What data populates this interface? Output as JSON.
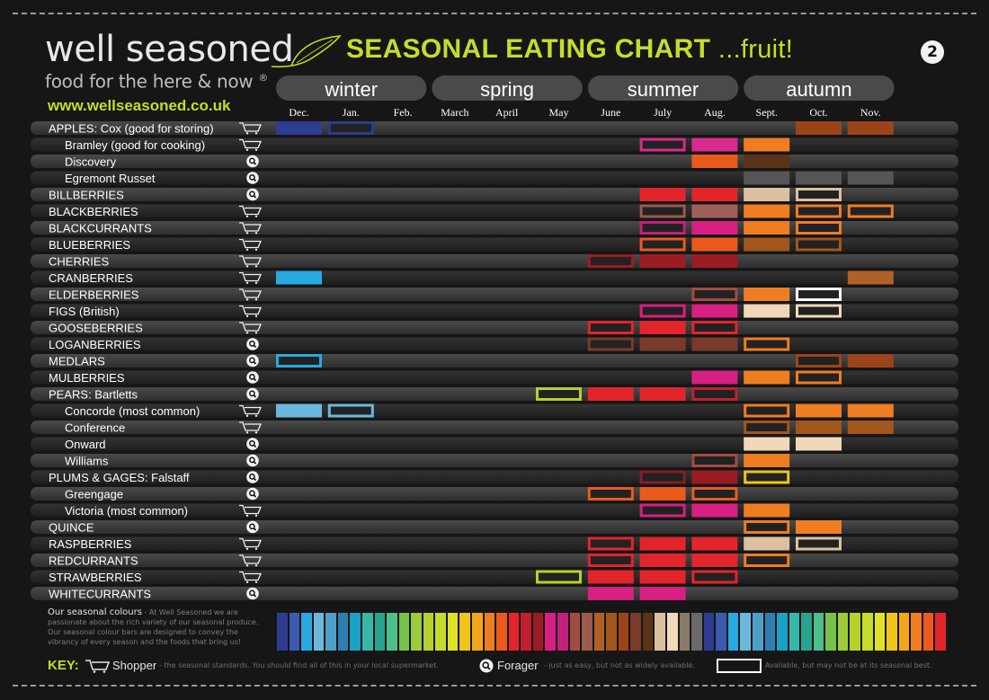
{
  "brand": {
    "name": "well seasoned",
    "tagline": "food for the here & now",
    "mark": "®",
    "url": "www.wellseasoned.co.uk"
  },
  "title": "SEASONAL EATING CHART",
  "title_suffix": "...fruit!",
  "badge": "2",
  "icons": {
    "shopper": "shopping-cart-icon",
    "forager": "magnifier-icon"
  },
  "chart_data": {
    "type": "table",
    "title": "SEASONAL EATING CHART ...fruit!",
    "seasons": [
      "winter",
      "spring",
      "summer",
      "autumn"
    ],
    "months": [
      "Dec.",
      "Jan.",
      "Feb.",
      "March",
      "April",
      "May",
      "June",
      "July",
      "Aug.",
      "Sept.",
      "Oct.",
      "Nov."
    ],
    "legend_styles": {
      "f": "filled block = in season",
      "o": "outlined block = available, but may not be at its seasonal best"
    },
    "rows": [
      {
        "name": "APPLES: Cox",
        "note": "(good for storing)",
        "sub": false,
        "src": "shopper",
        "cells": [
          [
            0,
            "#2e3c91",
            "f"
          ],
          [
            1,
            "#2e3c91",
            "o"
          ],
          [
            10,
            "#9c4419",
            "f"
          ],
          [
            11,
            "#9c4419",
            "f"
          ]
        ]
      },
      {
        "name": "Bramley",
        "note": "(good for cooking)",
        "sub": true,
        "src": "shopper",
        "cells": [
          [
            7,
            "#d92a8e",
            "o"
          ],
          [
            8,
            "#d92a8e",
            "f"
          ],
          [
            9,
            "#ef7d22",
            "f"
          ]
        ]
      },
      {
        "name": "Discovery",
        "sub": true,
        "src": "forager",
        "cells": [
          [
            8,
            "#ea5a1d",
            "f"
          ],
          [
            9,
            "#5a3418",
            "f"
          ]
        ]
      },
      {
        "name": "Egremont Russet",
        "sub": true,
        "src": "forager",
        "cells": [
          [
            9,
            "#555555",
            "f"
          ],
          [
            10,
            "#555555",
            "f"
          ],
          [
            11,
            "#555555",
            "f"
          ]
        ]
      },
      {
        "name": "BILLBERRIES",
        "sub": false,
        "src": "forager",
        "cells": [
          [
            7,
            "#e2252b",
            "f"
          ],
          [
            8,
            "#e2252b",
            "f"
          ],
          [
            9,
            "#dcc0a0",
            "f"
          ],
          [
            10,
            "#dcc0a0",
            "o"
          ]
        ]
      },
      {
        "name": "BLACKBERRIES",
        "sub": false,
        "src": "shopper",
        "cells": [
          [
            7,
            "#9a5a4e",
            "o"
          ],
          [
            8,
            "#a0605a",
            "f"
          ],
          [
            9,
            "#ef7d22",
            "f"
          ],
          [
            10,
            "#ef7d22",
            "o"
          ],
          [
            11,
            "#ef7d22",
            "o"
          ]
        ]
      },
      {
        "name": "BLACKCURRANTS",
        "sub": false,
        "src": "shopper",
        "cells": [
          [
            7,
            "#c2207a",
            "o"
          ],
          [
            8,
            "#d81f82",
            "f"
          ],
          [
            9,
            "#ef7d22",
            "f"
          ],
          [
            10,
            "#ef7d22",
            "o"
          ]
        ]
      },
      {
        "name": "BLUEBERRIES",
        "sub": false,
        "src": "shopper",
        "cells": [
          [
            7,
            "#ea5a1d",
            "o"
          ],
          [
            8,
            "#ea5a1d",
            "f"
          ],
          [
            9,
            "#a3561b",
            "f"
          ],
          [
            10,
            "#a3561b",
            "o"
          ]
        ]
      },
      {
        "name": "CHERRIES",
        "sub": false,
        "src": "shopper",
        "cells": [
          [
            6,
            "#9c1c24",
            "o"
          ],
          [
            7,
            "#9c1c24",
            "f"
          ],
          [
            8,
            "#9c1c24",
            "f"
          ]
        ]
      },
      {
        "name": "CRANBERRIES",
        "sub": false,
        "src": "shopper",
        "cells": [
          [
            0,
            "#28a9e1",
            "f"
          ],
          [
            11,
            "#b0612a",
            "f"
          ]
        ]
      },
      {
        "name": "ELDERBERRIES",
        "sub": false,
        "src": "shopper",
        "cells": [
          [
            8,
            "#a14c42",
            "o"
          ],
          [
            9,
            "#ef7d22",
            "f"
          ],
          [
            10,
            "#ffffff",
            "o"
          ]
        ]
      },
      {
        "name": "FIGS",
        "note": "(British)",
        "sub": false,
        "src": "shopper",
        "cells": [
          [
            7,
            "#d81f82",
            "o"
          ],
          [
            8,
            "#d81f82",
            "f"
          ],
          [
            9,
            "#f2d8bb",
            "f"
          ],
          [
            10,
            "#f2d8bb",
            "o"
          ]
        ]
      },
      {
        "name": "GOOSEBERRIES",
        "sub": false,
        "src": "shopper",
        "cells": [
          [
            6,
            "#e2252b",
            "o"
          ],
          [
            7,
            "#e2252b",
            "f"
          ],
          [
            8,
            "#e2252b",
            "o"
          ]
        ]
      },
      {
        "name": "LOGANBERRIES",
        "sub": false,
        "src": "forager",
        "cells": [
          [
            6,
            "#7a3b2a",
            "o"
          ],
          [
            7,
            "#7a3b2a",
            "f"
          ],
          [
            8,
            "#7a3b2a",
            "f"
          ],
          [
            9,
            "#ef7d22",
            "o"
          ]
        ]
      },
      {
        "name": "MEDLARS",
        "sub": false,
        "src": "forager",
        "cells": [
          [
            0,
            "#28a9e1",
            "o"
          ],
          [
            10,
            "#9c4419",
            "o"
          ],
          [
            11,
            "#9c4419",
            "f"
          ]
        ]
      },
      {
        "name": "MULBERRIES",
        "sub": false,
        "src": "forager",
        "cells": [
          [
            8,
            "#d81f82",
            "f"
          ],
          [
            9,
            "#ef7d22",
            "f"
          ],
          [
            10,
            "#ef7d22",
            "o"
          ]
        ]
      },
      {
        "name": "PEARS: Bartletts",
        "sub": false,
        "src": "forager",
        "cells": [
          [
            5,
            "#b6d22a",
            "o"
          ],
          [
            6,
            "#e2252b",
            "f"
          ],
          [
            7,
            "#e2252b",
            "f"
          ],
          [
            8,
            "#c2202e",
            "o"
          ]
        ]
      },
      {
        "name": "Concorde",
        "note": "(most common)",
        "sub": true,
        "src": "shopper",
        "cells": [
          [
            0,
            "#6cb8dd",
            "f"
          ],
          [
            1,
            "#6cb8dd",
            "o"
          ],
          [
            9,
            "#ef7d22",
            "o"
          ],
          [
            10,
            "#ef7d22",
            "f"
          ],
          [
            11,
            "#ef7d22",
            "f"
          ]
        ]
      },
      {
        "name": "Conference",
        "sub": true,
        "src": "shopper",
        "cells": [
          [
            9,
            "#a3561b",
            "o"
          ],
          [
            10,
            "#a3561b",
            "f"
          ],
          [
            11,
            "#a3561b",
            "f"
          ]
        ]
      },
      {
        "name": "Onward",
        "sub": true,
        "src": "forager",
        "cells": [
          [
            9,
            "#f2d8bb",
            "f"
          ],
          [
            10,
            "#f2d8bb",
            "f"
          ]
        ]
      },
      {
        "name": "Williams",
        "sub": true,
        "src": "forager",
        "cells": [
          [
            8,
            "#a14c42",
            "o"
          ],
          [
            9,
            "#ef7d22",
            "f"
          ]
        ]
      },
      {
        "name": "PLUMS & GAGES: Falstaff",
        "sub": false,
        "src": "forager",
        "cells": [
          [
            7,
            "#8a1c24",
            "o"
          ],
          [
            8,
            "#9c1c24",
            "f"
          ],
          [
            9,
            "#f0c51a",
            "o"
          ]
        ]
      },
      {
        "name": "Greengage",
        "sub": true,
        "src": "forager",
        "cells": [
          [
            6,
            "#ea5a1d",
            "o"
          ],
          [
            7,
            "#ea5a1d",
            "f"
          ],
          [
            8,
            "#ea5a1d",
            "o"
          ]
        ]
      },
      {
        "name": "Victoria",
        "note": "(most common)",
        "sub": true,
        "src": "shopper",
        "cells": [
          [
            7,
            "#d81f82",
            "o"
          ],
          [
            8,
            "#d81f82",
            "f"
          ],
          [
            9,
            "#ef7d22",
            "f"
          ]
        ]
      },
      {
        "name": "QUINCE",
        "sub": false,
        "src": "forager",
        "cells": [
          [
            9,
            "#ef7d22",
            "o"
          ],
          [
            10,
            "#ef7d22",
            "f"
          ]
        ]
      },
      {
        "name": "RASPBERRIES",
        "sub": false,
        "src": "shopper",
        "cells": [
          [
            6,
            "#e2252b",
            "o"
          ],
          [
            7,
            "#e2252b",
            "f"
          ],
          [
            8,
            "#e2252b",
            "f"
          ],
          [
            9,
            "#dcc0a0",
            "f"
          ],
          [
            10,
            "#dcc0a0",
            "o"
          ]
        ]
      },
      {
        "name": "REDCURRANTS",
        "sub": false,
        "src": "shopper",
        "cells": [
          [
            6,
            "#e2252b",
            "o"
          ],
          [
            7,
            "#e2252b",
            "f"
          ],
          [
            8,
            "#e2252b",
            "f"
          ],
          [
            9,
            "#ef7d22",
            "o"
          ]
        ]
      },
      {
        "name": "STRAWBERRIES",
        "sub": false,
        "src": "shopper",
        "cells": [
          [
            5,
            "#b6d22a",
            "o"
          ],
          [
            6,
            "#e2252b",
            "f"
          ],
          [
            7,
            "#e2252b",
            "f"
          ],
          [
            8,
            "#e2252b",
            "o"
          ]
        ]
      },
      {
        "name": "WHITECURRANTS",
        "sub": false,
        "src": "forager",
        "cells": [
          [
            6,
            "#d81f82",
            "f"
          ],
          [
            7,
            "#d81f82",
            "f"
          ]
        ]
      }
    ]
  },
  "footer": {
    "heading": "Our seasonal colours",
    "body": " - At Well Seasoned we are passionate about the rich variety of our seasonal produce. Our seasonal colour bars are designed to convey the vibrancy of every season and the foods that bring us!",
    "swatches": [
      "#2e3c91",
      "#3a5bb0",
      "#28a9e1",
      "#6cb8dd",
      "#4fa0c8",
      "#2d7fb0",
      "#1aa2c6",
      "#38b6a9",
      "#27a38e",
      "#4dbf8a",
      "#76c24b",
      "#9bcb3b",
      "#b6d22a",
      "#c6dc2a",
      "#e0e22a",
      "#f0c51a",
      "#f5a51c",
      "#ef7d22",
      "#ea5a1d",
      "#e2252b",
      "#c2202e",
      "#9c1c24",
      "#d81f82",
      "#c2207a",
      "#a14c42",
      "#9a5a4e",
      "#b0612a",
      "#a3561b",
      "#9c4419",
      "#7a3b2a",
      "#5a3418",
      "#dcc0a0",
      "#f2d8bb",
      "#8a7a6a",
      "#6a6a6a"
    ]
  },
  "key": {
    "label": "KEY:",
    "shopper": "Shopper",
    "shopper_desc": "- the seasonal standards. You should find all of this in your local supermarket.",
    "forager": "Forager",
    "forager_desc": "- just as easy, but not as widely available.",
    "outline_desc": "Available, but may not be at its seasonal best."
  }
}
